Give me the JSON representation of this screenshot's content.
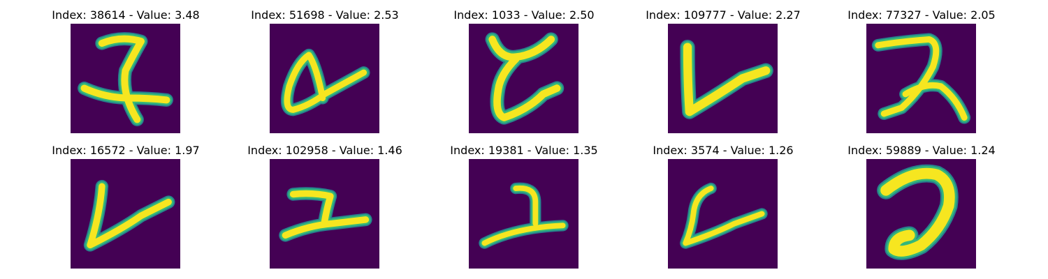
{
  "colors": {
    "background": "#440154",
    "stroke_core": "#f6e620",
    "stroke_edge": "#35b779",
    "stroke_halo": "#26828e"
  },
  "panels": [
    {
      "title": "Index: 38614 - Value: 3.48"
    },
    {
      "title": "Index: 51698 - Value: 2.53"
    },
    {
      "title": "Index: 1033 - Value: 2.50"
    },
    {
      "title": "Index: 109777 - Value: 2.27"
    },
    {
      "title": "Index: 77327 - Value: 2.05"
    },
    {
      "title": "Index: 16572 - Value: 1.97"
    },
    {
      "title": "Index: 102958 - Value: 1.46"
    },
    {
      "title": "Index: 19381 - Value: 1.35"
    },
    {
      "title": "Index: 3574 - Value: 1.26"
    },
    {
      "title": "Index: 59889 - Value: 1.24"
    }
  ]
}
